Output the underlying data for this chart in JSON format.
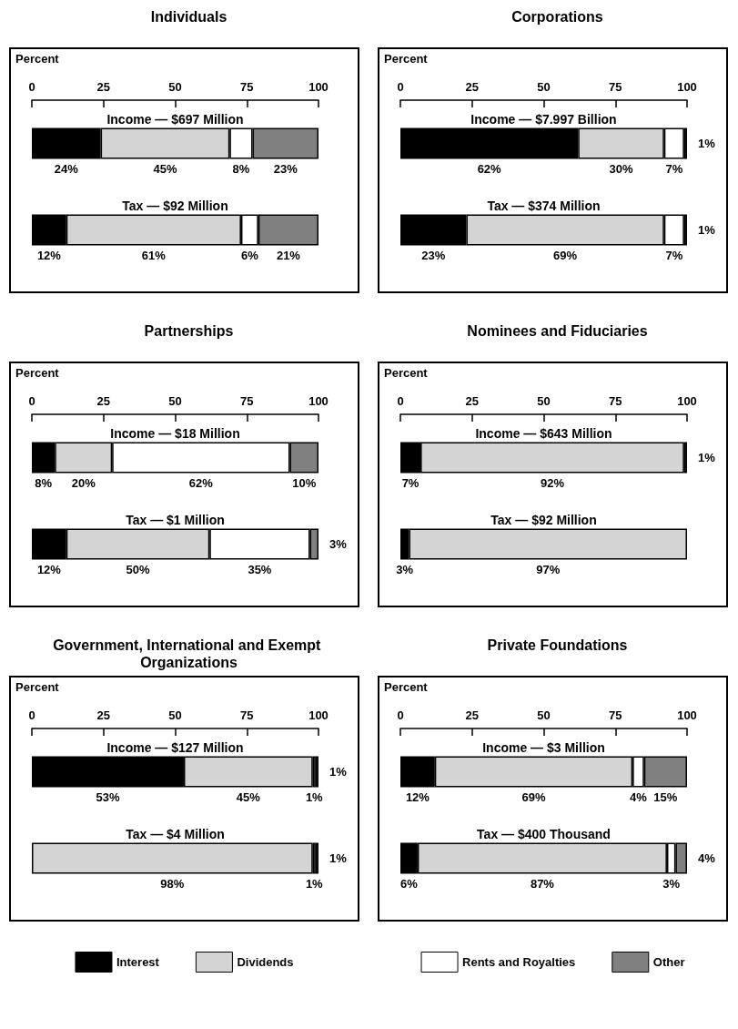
{
  "chart_data": [
    {
      "type": "bar",
      "orientation": "horizontal",
      "stacked": true,
      "title": "Individuals",
      "xlabel": "Percent",
      "xlim": [
        0,
        100
      ],
      "xticks": [
        0,
        25,
        50,
        75,
        100
      ],
      "categories": [
        "Income — $697 Million",
        "Tax — $92 Million"
      ],
      "series": [
        {
          "color": "#000000",
          "values": [
            24,
            12
          ],
          "value_labels": [
            "24%",
            "12%"
          ]
        },
        {
          "color": "#d4d4d4",
          "values": [
            45,
            61
          ],
          "value_labels": [
            "45%",
            "61%"
          ]
        },
        {
          "color": "#ffffff",
          "values": [
            8,
            6
          ],
          "value_labels": [
            "8%",
            "6%"
          ]
        },
        {
          "color": "#808080",
          "values": [
            23,
            21
          ],
          "value_labels": [
            "23%",
            "21%"
          ]
        }
      ]
    },
    {
      "type": "bar",
      "orientation": "horizontal",
      "stacked": true,
      "title": "Corporations",
      "xlabel": "Percent",
      "xlim": [
        0,
        100
      ],
      "xticks": [
        0,
        25,
        50,
        75,
        100
      ],
      "categories": [
        "Income — $7.997 Billion",
        "Tax — $374 Million"
      ],
      "series": [
        {
          "color": "#000000",
          "values": [
            62,
            23
          ],
          "value_labels": [
            "62%",
            "23%"
          ]
        },
        {
          "color": "#d4d4d4",
          "values": [
            30,
            69
          ],
          "value_labels": [
            "30%",
            "69%"
          ]
        },
        {
          "color": "#ffffff",
          "values": [
            7,
            7
          ],
          "value_labels": [
            "7%",
            "7%"
          ]
        },
        {
          "color": "#808080",
          "values": [
            1,
            1
          ],
          "value_labels": [
            "1%",
            "1%"
          ]
        }
      ]
    },
    {
      "type": "bar",
      "orientation": "horizontal",
      "stacked": true,
      "title": "Partnerships",
      "xlabel": "Percent",
      "xlim": [
        0,
        100
      ],
      "xticks": [
        0,
        25,
        50,
        75,
        100
      ],
      "categories": [
        "Income — $18 Million",
        "Tax — $1 Million"
      ],
      "series": [
        {
          "color": "#000000",
          "values": [
            8,
            12
          ],
          "value_labels": [
            "8%",
            "12%"
          ]
        },
        {
          "color": "#d4d4d4",
          "values": [
            20,
            50
          ],
          "value_labels": [
            "20%",
            "50%"
          ]
        },
        {
          "color": "#ffffff",
          "values": [
            62,
            35
          ],
          "value_labels": [
            "62%",
            "35%"
          ]
        },
        {
          "color": "#808080",
          "values": [
            10,
            3
          ],
          "value_labels": [
            "10%",
            "3%"
          ]
        }
      ]
    },
    {
      "type": "bar",
      "orientation": "horizontal",
      "stacked": true,
      "title": "Nominees and Fiduciaries",
      "xlabel": "Percent",
      "xlim": [
        0,
        100
      ],
      "xticks": [
        0,
        25,
        50,
        75,
        100
      ],
      "categories": [
        "Income — $643 Million",
        "Tax — $92 Million"
      ],
      "series": [
        {
          "color": "#000000",
          "values": [
            7,
            3
          ],
          "value_labels": [
            "7%",
            "3%"
          ]
        },
        {
          "color": "#d4d4d4",
          "values": [
            92,
            97
          ],
          "value_labels": [
            "92%",
            "97%"
          ]
        },
        {
          "color": "#ffffff",
          "values": [
            0,
            0
          ],
          "value_labels": [
            null,
            null
          ]
        },
        {
          "color": "#808080",
          "values": [
            1,
            0
          ],
          "value_labels": [
            "1%",
            null
          ]
        }
      ]
    },
    {
      "type": "bar",
      "orientation": "horizontal",
      "stacked": true,
      "title": "Government, International and Exempt Organizations",
      "xlabel": "Percent",
      "xlim": [
        0,
        100
      ],
      "xticks": [
        0,
        25,
        50,
        75,
        100
      ],
      "legend": "bottom",
      "categories": [
        "Income — $127 Million",
        "Tax — $4 Million"
      ],
      "series": [
        {
          "name": "Interest",
          "color": "#000000",
          "values": [
            53,
            0
          ],
          "value_labels": [
            "53%",
            null
          ]
        },
        {
          "name": "Dividends",
          "color": "#d4d4d4",
          "values": [
            45,
            98
          ],
          "value_labels": [
            "45%",
            "98%"
          ]
        },
        {
          "color": "#ffffff",
          "values": [
            1,
            1
          ],
          "value_labels": [
            "1%",
            "1%"
          ]
        },
        {
          "color": "#808080",
          "values": [
            1,
            1
          ],
          "value_labels": [
            "1%",
            "1%"
          ]
        }
      ]
    },
    {
      "type": "bar",
      "orientation": "horizontal",
      "stacked": true,
      "title": "Private Foundations",
      "xlabel": "Percent",
      "xlim": [
        0,
        100
      ],
      "xticks": [
        0,
        25,
        50,
        75,
        100
      ],
      "legend": "bottom",
      "categories": [
        "Income — $3 Million",
        "Tax — $400 Thousand"
      ],
      "series": [
        {
          "color": "#000000",
          "values": [
            12,
            6
          ],
          "value_labels": [
            "12%",
            "6%"
          ]
        },
        {
          "color": "#d4d4d4",
          "values": [
            69,
            87
          ],
          "value_labels": [
            "69%",
            "87%"
          ]
        },
        {
          "name": "Rents and Royalties",
          "color": "#ffffff",
          "values": [
            4,
            3
          ],
          "value_labels": [
            "4%",
            "3%"
          ]
        },
        {
          "name": "Other",
          "color": "#808080",
          "values": [
            15,
            4
          ],
          "value_labels": [
            "15%",
            "4%"
          ]
        }
      ]
    }
  ]
}
